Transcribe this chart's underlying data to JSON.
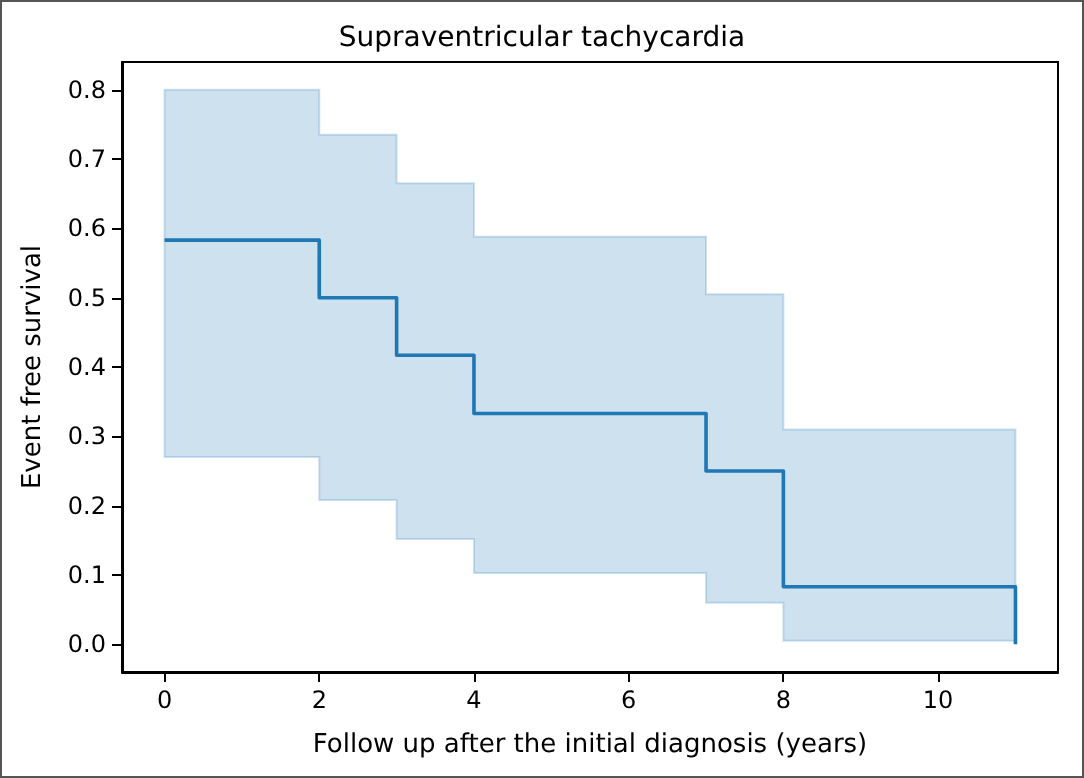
{
  "chart_data": {
    "type": "step",
    "title": "Supraventricular tachycardia",
    "xlabel": "Follow up after the initial diagnosis (years)",
    "ylabel": "Event free survival",
    "x": [
      0,
      2,
      3,
      4,
      7,
      8,
      11
    ],
    "series": [
      {
        "color": "#1f77b4",
        "values": [
          0.583,
          0.5,
          0.417,
          0.333,
          0.25,
          0.083,
          0
        ],
        "lower": [
          0.27,
          0.208,
          0.152,
          0.103,
          0.06,
          0.005,
          0.005
        ],
        "upper": [
          0.8,
          0.735,
          0.665,
          0.588,
          0.505,
          0.31,
          0.31
        ]
      }
    ],
    "xlim": [
      -0.55,
      11.55
    ],
    "ylim": [
      -0.04,
      0.84
    ],
    "xticks": [
      0,
      2,
      4,
      6,
      8,
      10
    ],
    "yticks": [
      {
        "value": 0,
        "label": "0.0"
      },
      0.1,
      0.2,
      0.3,
      0.4,
      0.5,
      0.6,
      0.7,
      0.8
    ],
    "grid": false,
    "marker": "none",
    "line_style": "solid"
  }
}
